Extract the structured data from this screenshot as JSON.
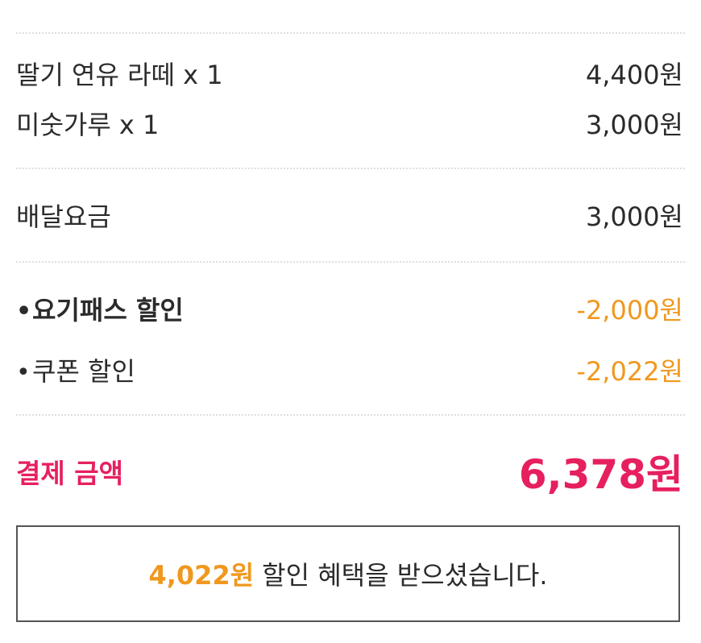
{
  "items": [
    {
      "name": "딸기 연유 라떼 x 1",
      "price": "4,400원"
    },
    {
      "name": "미숫가루 x 1",
      "price": "3,000원"
    }
  ],
  "delivery": {
    "label": "배달요금",
    "price": "3,000원"
  },
  "discounts": [
    {
      "bullet": "•",
      "label": "요기패스 할인",
      "amount": "-2,000원"
    },
    {
      "bullet": "•",
      "label": "쿠폰 할인",
      "amount": "-2,022원"
    }
  ],
  "total": {
    "label": "결제 금액",
    "amount": "6,378원"
  },
  "benefit": {
    "amount": "4,022원",
    "text": "할인 혜택을 받으셨습니다."
  },
  "colors": {
    "accent_pink": "#e6205e",
    "accent_orange": "#f0981e",
    "text": "#2b2b2b",
    "divider": "#dedede"
  }
}
